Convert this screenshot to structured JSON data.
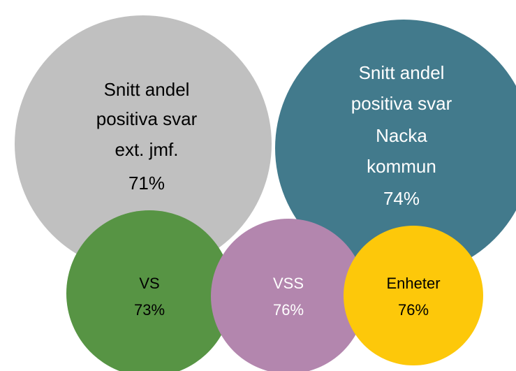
{
  "nodes": [
    {
      "lines": [
        "Snitt andel",
        "positiva svar",
        "ext. jmf.",
        "71%"
      ]
    },
    {
      "lines": [
        "Snitt andel",
        "positiva svar",
        "Nacka",
        "kommun",
        "74%"
      ]
    },
    {
      "lines": [
        "VS",
        "73%"
      ]
    },
    {
      "lines": [
        "VSS",
        "76%"
      ]
    },
    {
      "lines": [
        "Enheter",
        "76%"
      ]
    }
  ]
}
